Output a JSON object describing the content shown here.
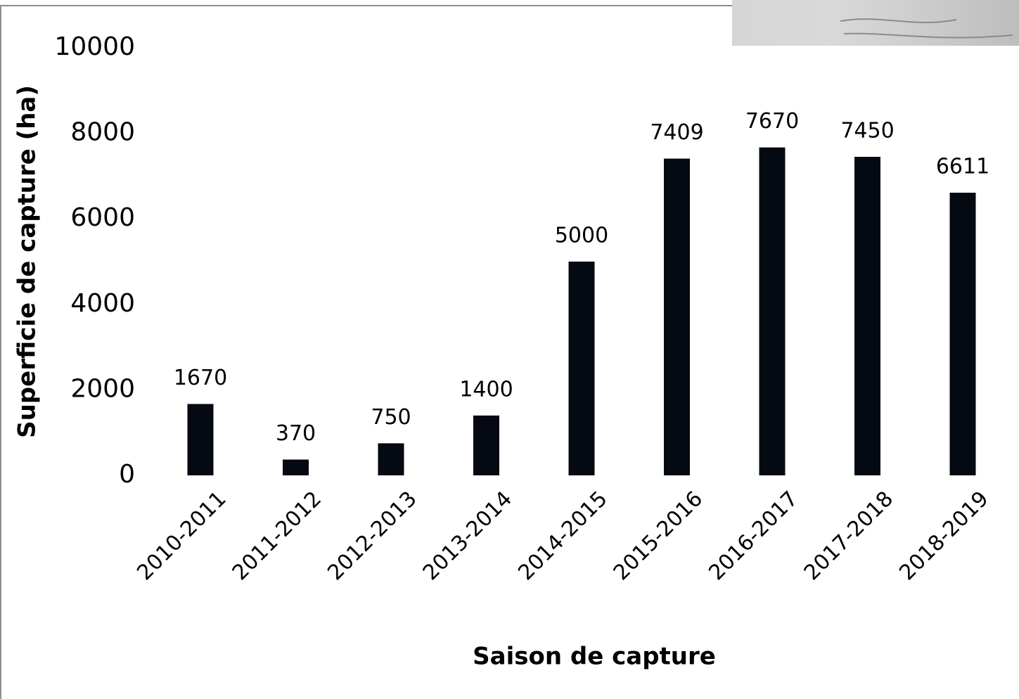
{
  "chart_data": {
    "type": "bar",
    "x_label": "Saison de capture",
    "y_label": "Superficie de capture (ha)",
    "categories": [
      "2010-2011",
      "2011-2012",
      "2012-2013",
      "2013-2014",
      "2014-2015",
      "2015-2016",
      "2016-2017",
      "2017-2018",
      "2018-2019"
    ],
    "values": [
      1670,
      370,
      750,
      1400,
      5000,
      7409,
      7670,
      7450,
      6611
    ],
    "color": "#050a12",
    "ylim": [
      0,
      10000
    ],
    "yticks": [
      0,
      2000,
      4000,
      6000,
      8000,
      10000
    ],
    "grid": false
  }
}
